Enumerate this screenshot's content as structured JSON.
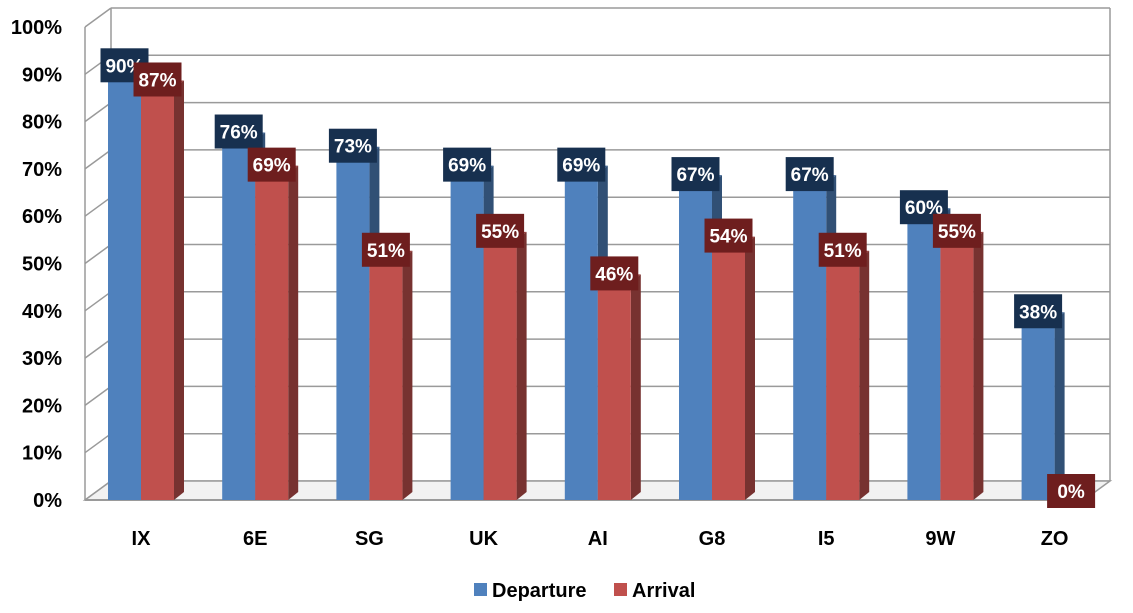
{
  "chart_data": {
    "type": "bar",
    "categories": [
      "IX",
      "6E",
      "SG",
      "UK",
      "AI",
      "G8",
      "I5",
      "9W",
      "ZO"
    ],
    "series": [
      {
        "name": "Departure",
        "values": [
          90,
          76,
          73,
          69,
          69,
          67,
          67,
          60,
          38
        ],
        "color": "#4f81bd",
        "label_bg": "#17304f"
      },
      {
        "name": "Arrival",
        "values": [
          87,
          69,
          51,
          55,
          46,
          54,
          51,
          55,
          0
        ],
        "color": "#c0504d",
        "label_bg": "#6e1e1e"
      }
    ],
    "yticks": [
      "0%",
      "10%",
      "20%",
      "30%",
      "40%",
      "50%",
      "60%",
      "70%",
      "80%",
      "90%",
      "100%"
    ],
    "ylim": [
      0,
      100
    ],
    "grid": true,
    "legend": "bottom",
    "title": "",
    "xlabel": "",
    "ylabel": ""
  }
}
